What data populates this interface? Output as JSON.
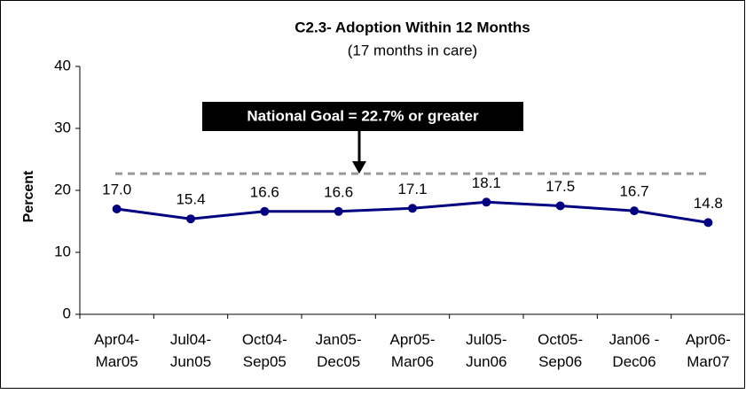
{
  "chart_data": {
    "type": "line",
    "title": "C2.3- Adoption Within 12 Months",
    "subtitle": "(17 months in care)",
    "y_label": "Percent",
    "categories": [
      "Apr04-\nMar05",
      "Jul04-\nJun05",
      "Oct04-\nSep05",
      "Jan05-\nDec05",
      "Apr05-\nMar06",
      "Jul05-\nJun06",
      "Oct05-\nSep06",
      "Jan06 -\nDec06",
      "Apr06-\nMar07"
    ],
    "values": [
      17.0,
      15.4,
      16.6,
      16.6,
      17.1,
      18.1,
      17.5,
      16.7,
      14.8
    ],
    "value_labels": [
      "17.0",
      "15.4",
      "16.6",
      "16.6",
      "17.1",
      "18.1",
      "17.5",
      "16.7",
      "14.8"
    ],
    "color": "#000080",
    "ylim": [
      0,
      40
    ],
    "yticks": [
      0,
      10,
      20,
      30,
      40
    ],
    "grid": false,
    "goal_line": {
      "value": 22.7,
      "color": "#999999",
      "label": "National Goal = 22.7% or greater"
    }
  }
}
